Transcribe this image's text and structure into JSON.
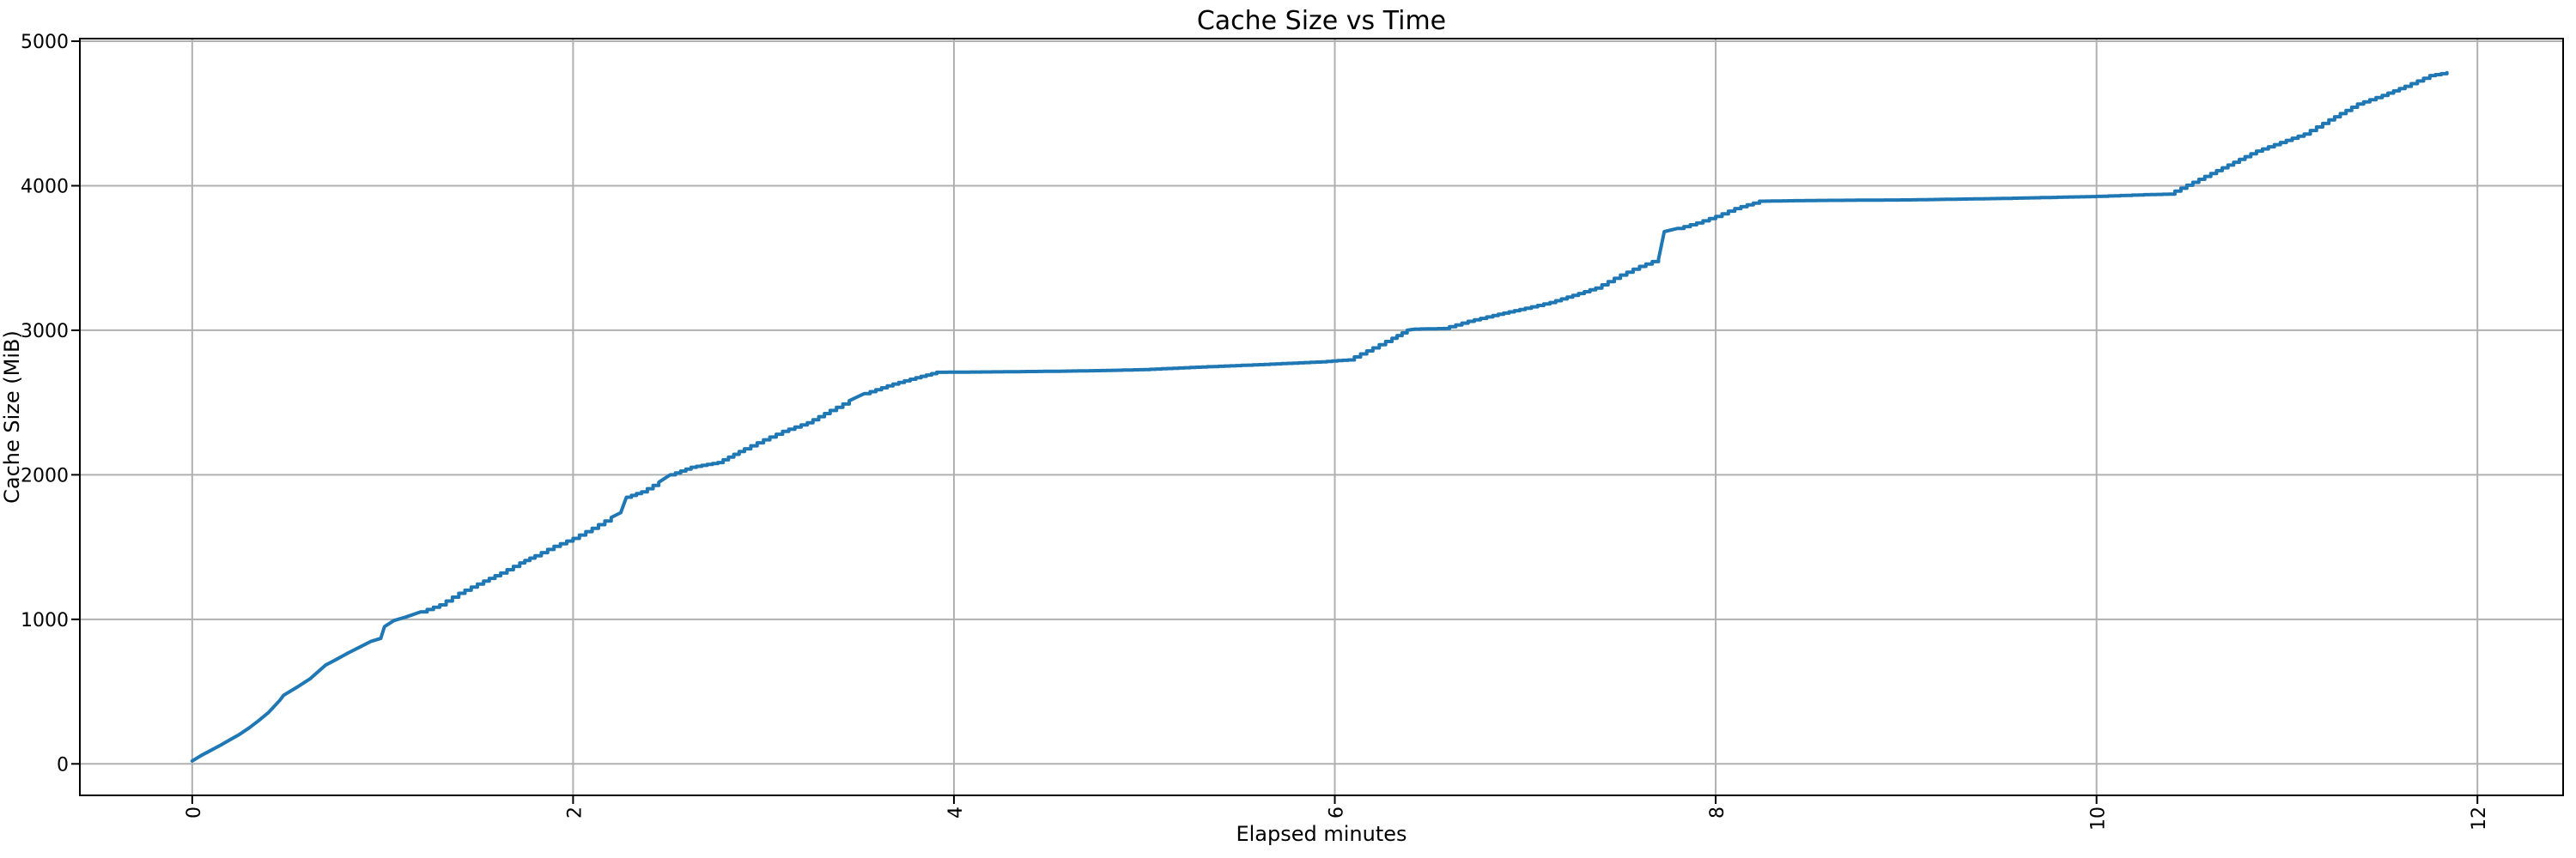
{
  "chart_data": {
    "type": "line",
    "title": "Cache Size vs Time",
    "xlabel": "Elapsed minutes",
    "ylabel": "Cache Size (MiB)",
    "x_ticks": [
      0,
      2,
      4,
      6,
      8,
      10,
      12
    ],
    "y_ticks": [
      0,
      1000,
      2000,
      3000,
      4000,
      5000
    ],
    "xlim": [
      -0.59,
      12.45
    ],
    "ylim": [
      -218,
      5018
    ],
    "grid": true,
    "legend": "none",
    "line_color": "#1f77b4",
    "grid_color": "#b0b0b0",
    "spine_color": "#000000",
    "series": [
      {
        "name": "cache-size",
        "x": [
          0.0,
          0.05,
          0.1,
          0.15,
          0.2,
          0.25,
          0.3,
          0.35,
          0.4,
          0.46,
          0.48,
          0.55,
          0.62,
          0.7,
          0.76,
          0.82,
          0.88,
          0.94,
          0.99,
          1.01,
          1.06,
          1.12,
          1.2,
          1.3,
          1.4,
          1.53,
          1.62,
          1.72,
          1.8,
          1.9,
          2.0,
          2.1,
          2.2,
          2.25,
          2.28,
          2.36,
          2.45,
          2.51,
          2.62,
          2.76,
          2.9,
          3.0,
          3.1,
          3.23,
          3.35,
          3.45,
          3.53,
          3.68,
          3.8,
          3.91,
          4.2,
          4.5,
          4.8,
          5.0,
          5.3,
          5.6,
          5.93,
          6.07,
          6.2,
          6.3,
          6.38,
          6.42,
          6.57,
          6.7,
          6.83,
          7.0,
          7.13,
          7.25,
          7.37,
          7.5,
          7.6,
          7.7,
          7.73,
          7.8,
          7.9,
          8.0,
          8.1,
          8.23,
          8.5,
          9.0,
          9.5,
          10.0,
          10.25,
          10.38,
          10.6,
          10.84,
          11.09,
          11.22,
          11.37,
          11.5,
          11.62,
          11.75,
          11.84
        ],
        "y": [
          20,
          60,
          95,
          130,
          168,
          205,
          250,
          300,
          355,
          440,
          475,
          530,
          590,
          683,
          725,
          768,
          808,
          848,
          868,
          950,
          992,
          1015,
          1052,
          1100,
          1180,
          1265,
          1320,
          1390,
          1440,
          1505,
          1560,
          1630,
          1705,
          1738,
          1845,
          1882,
          1948,
          2000,
          2052,
          2085,
          2180,
          2242,
          2300,
          2360,
          2445,
          2512,
          2562,
          2628,
          2672,
          2709,
          2712,
          2716,
          2722,
          2728,
          2746,
          2762,
          2782,
          2795,
          2878,
          2945,
          3000,
          3008,
          3012,
          3062,
          3102,
          3152,
          3192,
          3242,
          3292,
          3382,
          3442,
          3492,
          3682,
          3705,
          3742,
          3788,
          3842,
          3893,
          3898,
          3902,
          3912,
          3926,
          3938,
          3942,
          4085,
          4240,
          4358,
          4455,
          4565,
          4625,
          4688,
          4762,
          4782
        ]
      }
    ]
  }
}
